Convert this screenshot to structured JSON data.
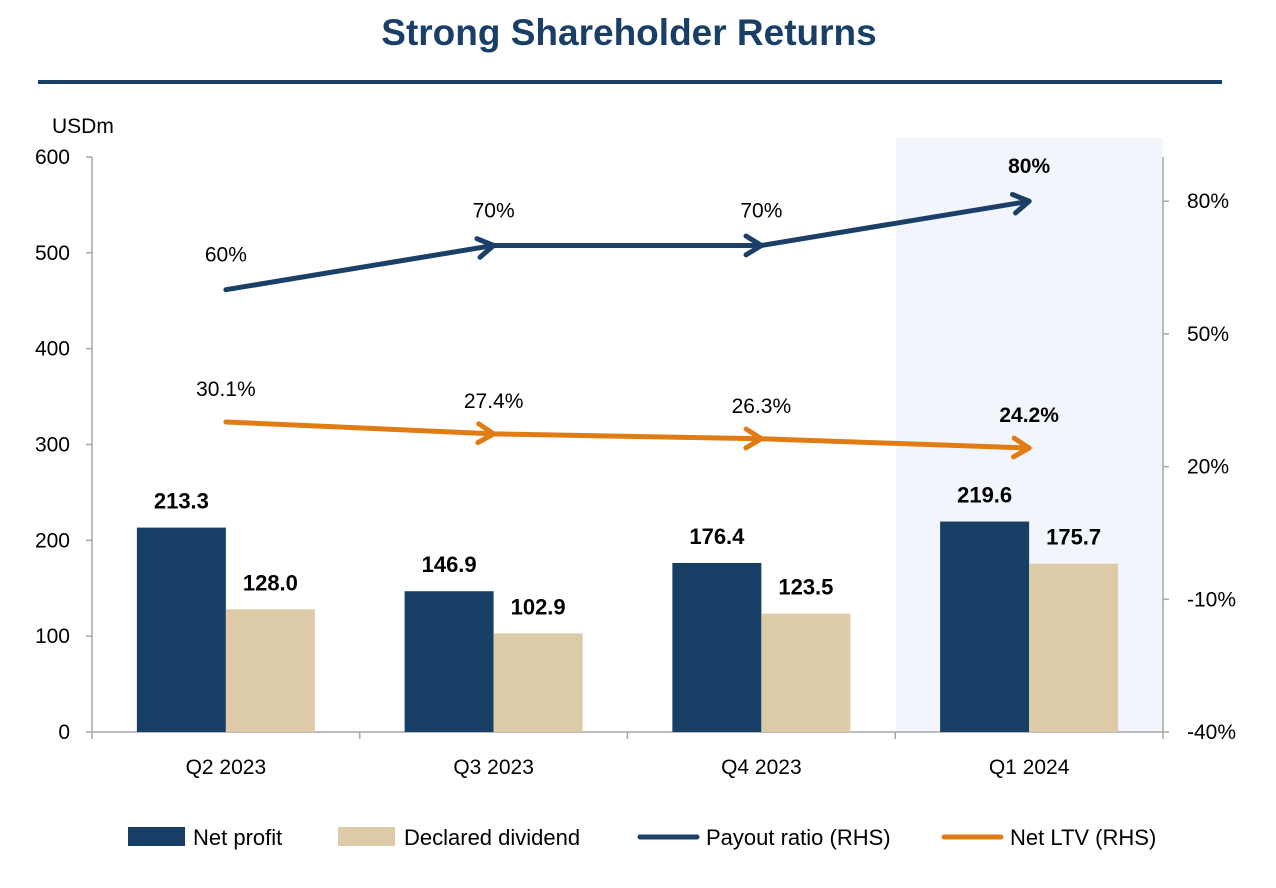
{
  "title": "Strong Shareholder Returns",
  "colors": {
    "net_profit": "#173f65",
    "dividend": "#dccba6",
    "payout": "#1b3f66",
    "ltv": "#e17b13",
    "highlight": "#f2f6fc",
    "title": "#1a3f67"
  },
  "chart_data": {
    "type": "bar",
    "title": "Strong Shareholder Returns",
    "ylabel": "USDm",
    "ylim": [
      0,
      600
    ],
    "y2lim": [
      -40,
      90
    ],
    "yticks": [
      "0",
      "100",
      "200",
      "300",
      "400",
      "500",
      "600"
    ],
    "y2ticks": [
      "-40%",
      "-10%",
      "20%",
      "50%",
      "80%"
    ],
    "categories": [
      "Q2 2023",
      "Q3 2023",
      "Q4 2023",
      "Q1 2024"
    ],
    "highlighted_category": "Q1 2024",
    "grid": false,
    "legend_position": "bottom",
    "series": [
      {
        "name": "Net profit",
        "type": "bar",
        "axis": "left",
        "values": [
          213.3,
          146.9,
          176.4,
          219.6
        ],
        "labels": [
          "213.3",
          "146.9",
          "176.4",
          "219.6"
        ]
      },
      {
        "name": "Declared dividend",
        "type": "bar",
        "axis": "left",
        "values": [
          128.0,
          102.9,
          123.5,
          175.7
        ],
        "labels": [
          "128.0",
          "102.9",
          "123.5",
          "175.7"
        ]
      },
      {
        "name": "Payout ratio (RHS)",
        "type": "line",
        "axis": "right",
        "values": [
          60,
          70,
          70,
          80
        ],
        "labels": [
          "60%",
          "70%",
          "70%",
          "80%"
        ]
      },
      {
        "name": "Net LTV (RHS)",
        "type": "line",
        "axis": "right",
        "values": [
          30.1,
          27.4,
          26.3,
          24.2
        ],
        "labels": [
          "30.1%",
          "27.4%",
          "26.3%",
          "24.2%"
        ]
      }
    ]
  }
}
